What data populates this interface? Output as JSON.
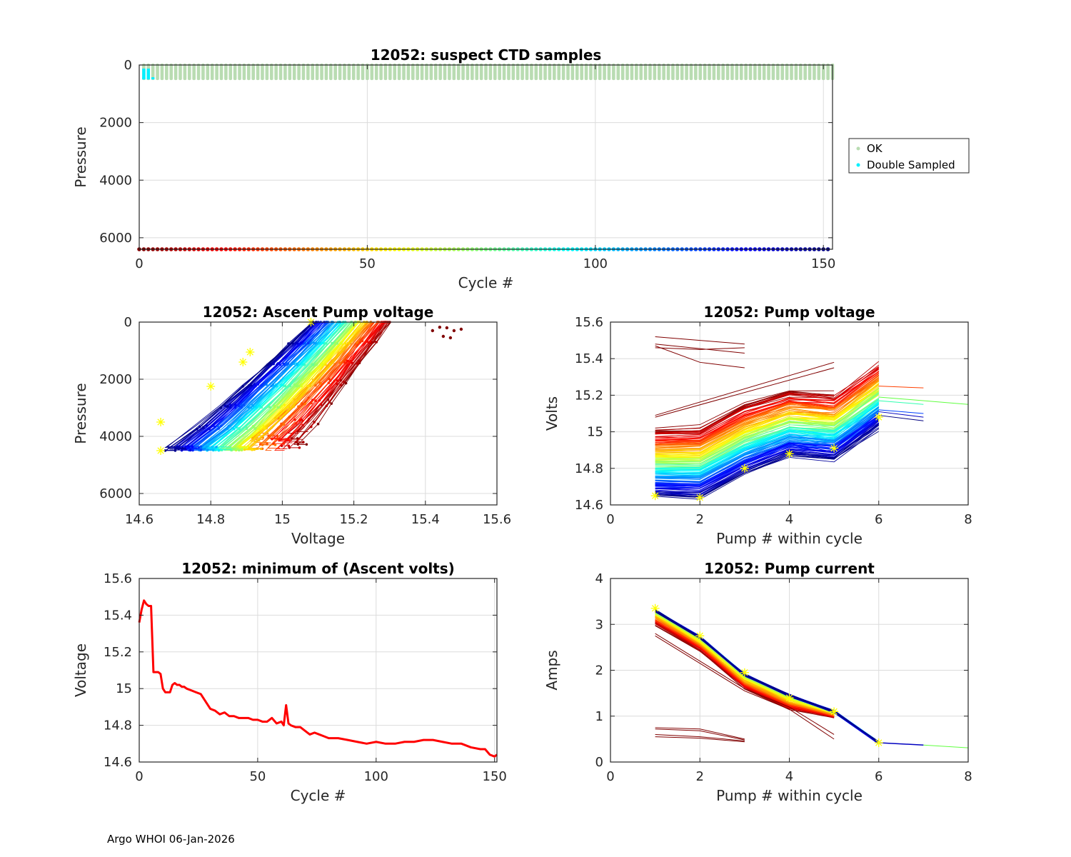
{
  "footer": "Argo WHOI 06-Jan-2026",
  "chart_data": [
    {
      "id": "suspect",
      "type": "scatter",
      "title": "12052: suspect CTD samples",
      "xlabel": "Cycle #",
      "ylabel": "Pressure",
      "xlim": [
        0,
        152
      ],
      "ylim": [
        6400,
        0
      ],
      "xticks": [
        0,
        50,
        100,
        150
      ],
      "yticks": [
        0,
        2000,
        4000,
        6000
      ],
      "grid": true,
      "legend": {
        "position": "outside-right",
        "entries": [
          {
            "label": "OK",
            "color": "#b9dcb2"
          },
          {
            "label": "Double Sampled",
            "color": "#00f0ff"
          }
        ]
      },
      "series": [
        {
          "name": "OK",
          "color": "#b9dcb2",
          "cycles": "1-152",
          "pressure_range": [
            0,
            500
          ]
        },
        {
          "name": "Double Sampled",
          "color": "#00f0ff",
          "points": [
            [
              1,
              200
            ],
            [
              1,
              500
            ],
            [
              2,
              200
            ],
            [
              2,
              500
            ],
            [
              3,
              500
            ]
          ]
        },
        {
          "name": "cycle colorbar",
          "pressure": 6400,
          "cycles": "0-151",
          "colormap": "jet-reversed"
        }
      ]
    },
    {
      "id": "ascent",
      "type": "line",
      "title": "12052: Ascent Pump voltage",
      "xlabel": "Voltage",
      "ylabel": "Pressure",
      "xlim": [
        14.6,
        15.6
      ],
      "ylim": [
        6400,
        0
      ],
      "xticks": [
        "14.6",
        "14.8",
        "15",
        "15.2",
        "15.4",
        "15.6"
      ],
      "yticks": [
        0,
        2000,
        4000,
        6000
      ],
      "grid": true,
      "colormap": "jet by cycle (early=dark red, late=dark blue)",
      "description": "Voltage decreases with cycle; pressure profiles from ~4500 dbar to surface",
      "min_markers": [
        [
          15.08,
          0
        ],
        [
          14.91,
          1050
        ],
        [
          14.89,
          1400
        ],
        [
          14.8,
          2250
        ],
        [
          14.66,
          3500
        ],
        [
          14.66,
          4500
        ]
      ]
    },
    {
      "id": "pumpvolt",
      "type": "line",
      "title": "12052: Pump voltage",
      "xlabel": "Pump # within cycle",
      "ylabel": "Volts",
      "xlim": [
        0,
        8
      ],
      "ylim": [
        14.6,
        15.6
      ],
      "xticks": [
        "0",
        "2",
        "4",
        "6",
        "8"
      ],
      "yticks": [
        "14.6",
        "14.8",
        "15",
        "15.2",
        "15.4",
        "15.6"
      ],
      "grid": true,
      "min_markers": [
        [
          1,
          14.65
        ],
        [
          2,
          14.64
        ],
        [
          3,
          14.8
        ],
        [
          4,
          14.88
        ],
        [
          5,
          14.91
        ],
        [
          6,
          15.08
        ]
      ]
    },
    {
      "id": "minvolt",
      "type": "line",
      "title": "12052: minimum of (Ascent volts)",
      "xlabel": "Cycle #",
      "ylabel": "Voltage",
      "xlim": [
        0,
        151
      ],
      "ylim": [
        14.6,
        15.6
      ],
      "xticks": [
        "0",
        "50",
        "100",
        "150"
      ],
      "yticks": [
        "14.6",
        "14.8",
        "15",
        "15.2",
        "15.4",
        "15.6"
      ],
      "grid": true,
      "color": "#ff0000",
      "x": [
        0,
        1,
        2,
        3,
        4,
        5,
        6,
        7,
        8,
        9,
        10,
        11,
        12,
        13,
        14,
        15,
        16,
        17,
        18,
        19,
        20,
        22,
        24,
        26,
        28,
        30,
        32,
        34,
        36,
        38,
        40,
        42,
        44,
        46,
        48,
        50,
        52,
        54,
        56,
        58,
        60,
        61,
        62,
        63,
        64,
        66,
        68,
        70,
        72,
        74,
        76,
        78,
        80,
        84,
        88,
        92,
        96,
        100,
        104,
        108,
        112,
        116,
        120,
        124,
        128,
        132,
        136,
        140,
        144,
        146,
        148,
        150,
        151
      ],
      "values": [
        15.36,
        15.43,
        15.48,
        15.46,
        15.45,
        15.45,
        15.09,
        15.09,
        15.09,
        15.08,
        15.0,
        14.98,
        14.98,
        14.98,
        15.02,
        15.03,
        15.02,
        15.02,
        15.01,
        15.01,
        15.0,
        14.99,
        14.98,
        14.97,
        14.93,
        14.89,
        14.88,
        14.86,
        14.87,
        14.85,
        14.85,
        14.84,
        14.84,
        14.84,
        14.83,
        14.83,
        14.82,
        14.82,
        14.84,
        14.81,
        14.82,
        14.8,
        14.91,
        14.81,
        14.8,
        14.79,
        14.79,
        14.77,
        14.75,
        14.76,
        14.75,
        14.74,
        14.73,
        14.73,
        14.72,
        14.71,
        14.7,
        14.71,
        14.7,
        14.7,
        14.71,
        14.71,
        14.72,
        14.72,
        14.71,
        14.7,
        14.7,
        14.68,
        14.67,
        14.67,
        14.64,
        14.63,
        14.64
      ]
    },
    {
      "id": "pumpcur",
      "type": "line",
      "title": "12052: Pump current",
      "xlabel": "Pump # within cycle",
      "ylabel": "Amps",
      "xlim": [
        0,
        8
      ],
      "ylim": [
        0,
        4
      ],
      "xticks": [
        "0",
        "2",
        "4",
        "6",
        "8"
      ],
      "yticks": [
        "0",
        "1",
        "2",
        "3",
        "4"
      ],
      "grid": true,
      "max_markers": [
        [
          1,
          3.35
        ],
        [
          2,
          2.75
        ],
        [
          3,
          1.95
        ],
        [
          4,
          1.4
        ],
        [
          5,
          1.1
        ],
        [
          6,
          0.42
        ]
      ]
    }
  ]
}
